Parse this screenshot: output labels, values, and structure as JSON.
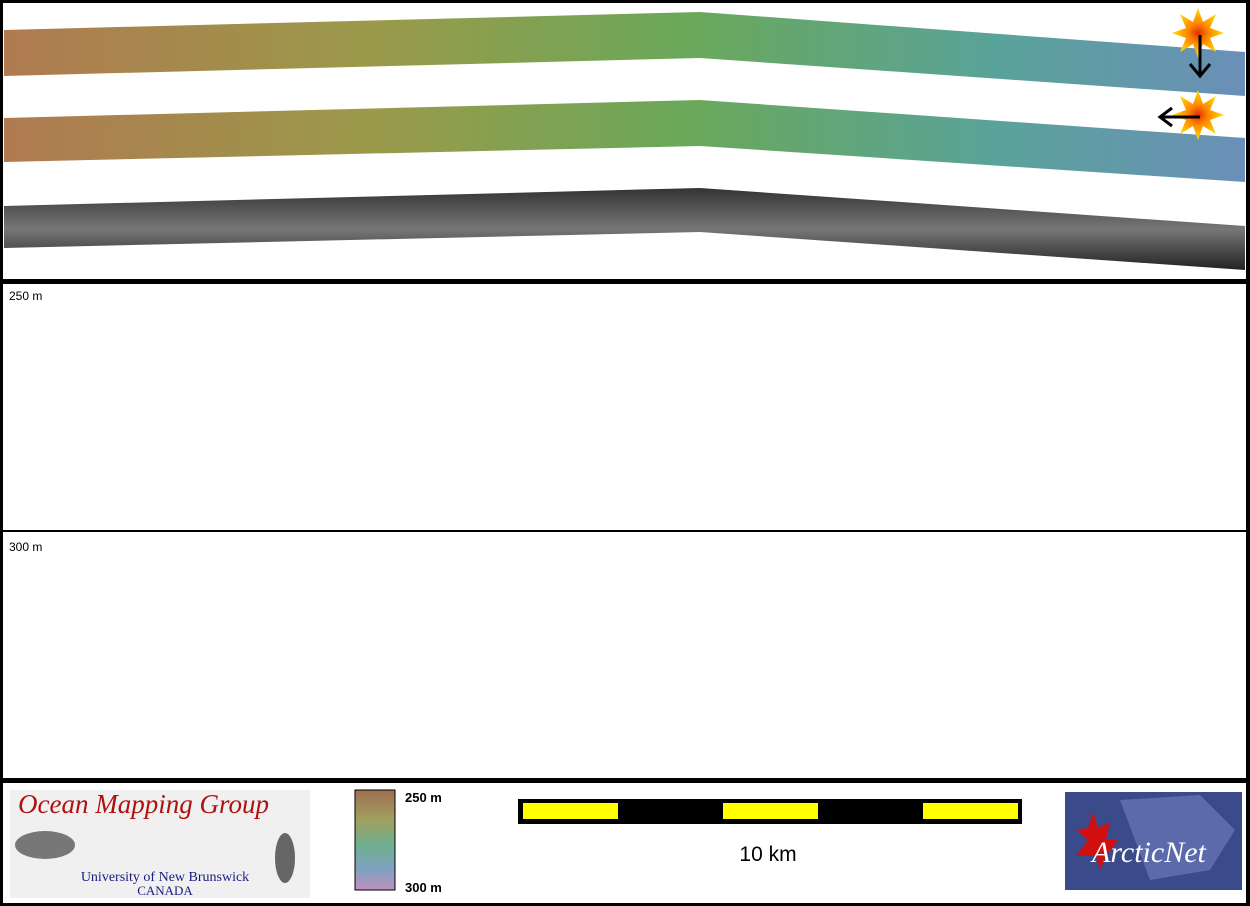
{
  "panels": {
    "depth_labels": [
      "250 m",
      "300 m"
    ]
  },
  "legend": {
    "top_label": "250 m",
    "bottom_label": "300 m"
  },
  "scale_bar": {
    "label": "10 km"
  },
  "logos": {
    "omg": {
      "title": "Ocean Mapping Group",
      "university": "University of New Brunswick",
      "country": "CANADA"
    },
    "arcticnet": "ArcticNet"
  }
}
